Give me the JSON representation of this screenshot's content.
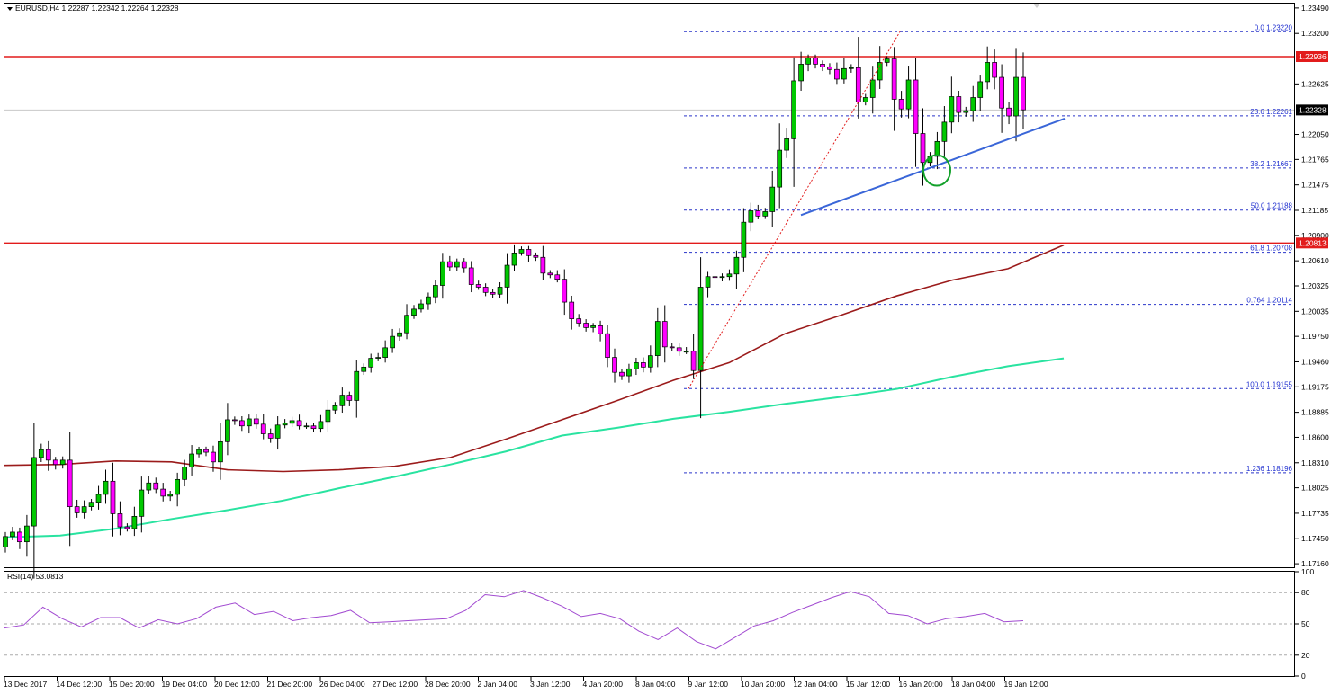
{
  "header": {
    "symbol_line": "EURUSD,H4  1.22287 1.22342 1.22264 1.22328",
    "menu_arrow_icon": "triangle-down-icon"
  },
  "rsi_header": "RSI(14) 53.0813",
  "colors": {
    "bull": "#00c800",
    "bear": "#ff00ff",
    "resistance": "#e21b1b",
    "fib": "#2a35c9",
    "trendline": "#3a66d8",
    "ma_fast": "#9b1b1b",
    "ma_slow": "#29e3a0",
    "rsi": "#a24bd1",
    "circle": "#12a12a",
    "swing": "#e21b1b"
  },
  "chart_data": {
    "type": "candlestick",
    "symbol": "EURUSD",
    "timeframe": "H4",
    "last": {
      "open": 1.22287,
      "high": 1.22342,
      "low": 1.22264,
      "close": 1.22328
    },
    "price_axis_labels": [
      "1.23490",
      "1.23200",
      "1.22625",
      "1.22050",
      "1.21765",
      "1.21475",
      "1.21185",
      "1.20900",
      "1.20610",
      "1.20325",
      "1.20035",
      "1.19750",
      "1.19460",
      "1.19175",
      "1.18885",
      "1.18600",
      "1.18310",
      "1.18025",
      "1.17735",
      "1.17450",
      "1.17160"
    ],
    "time_axis_labels": [
      "13 Dec 2017",
      "14 Dec 12:00",
      "15 Dec 20:00",
      "19 Dec 04:00",
      "20 Dec 12:00",
      "21 Dec 20:00",
      "26 Dec 04:00",
      "27 Dec 12:00",
      "28 Dec 20:00",
      "2 Jan 04:00",
      "3 Jan 12:00",
      "4 Jan 20:00",
      "8 Jan 04:00",
      "9 Jan 12:00",
      "10 Jan 20:00",
      "12 Jan 04:00",
      "15 Jan 12:00",
      "16 Jan 20:00",
      "18 Jan 04:00",
      "19 Jan 12:00"
    ],
    "ylim": [
      1.1712,
      1.2354
    ],
    "current_price_label": "1.22328",
    "resistance_levels": [
      {
        "price": 1.22936,
        "label": "1.22936"
      },
      {
        "price": 1.20813,
        "label": "1.20813"
      }
    ],
    "fibonacci": [
      {
        "price": 1.2322,
        "label": "0.0  1.23220"
      },
      {
        "price": 1.22261,
        "label": "23.6  1.22261"
      },
      {
        "price": 1.21667,
        "label": "38.2  1.21667"
      },
      {
        "price": 1.21188,
        "label": "50.0  1.21188"
      },
      {
        "price": 1.20708,
        "label": "61.8  1.20708"
      },
      {
        "price": 1.20114,
        "label": "0.764  1.20114"
      },
      {
        "price": 1.19155,
        "label": "100.0  1.19155"
      },
      {
        "price": 1.18196,
        "label": "1.236  1.18196"
      }
    ],
    "closes": [
      1.1747,
      1.1752,
      1.1741,
      1.1759,
      1.1837,
      1.1846,
      1.1834,
      1.1829,
      1.1834,
      1.1781,
      1.1774,
      1.1781,
      1.1786,
      1.1795,
      1.181,
      1.1773,
      1.1758,
      1.1756,
      1.177,
      1.18,
      1.1808,
      1.1801,
      1.1793,
      1.1795,
      1.1812,
      1.1826,
      1.1841,
      1.1846,
      1.1843,
      1.1832,
      1.1855,
      1.188,
      1.1879,
      1.1873,
      1.1881,
      1.1875,
      1.1864,
      1.1859,
      1.1874,
      1.1876,
      1.1879,
      1.1873,
      1.1873,
      1.187,
      1.1878,
      1.1891,
      1.1896,
      1.1908,
      1.1902,
      1.1935,
      1.194,
      1.195,
      1.1951,
      1.1962,
      1.1975,
      1.1979,
      1.1999,
      1.2006,
      1.2012,
      1.202,
      1.2033,
      1.206,
      1.2054,
      1.206,
      1.2053,
      1.2034,
      1.2031,
      1.2025,
      1.2023,
      1.2031,
      1.2056,
      1.207,
      1.2074,
      1.2067,
      1.2065,
      1.2047,
      1.2045,
      1.204,
      1.2014,
      1.1995,
      1.199,
      1.1985,
      1.1987,
      1.1978,
      1.1951,
      1.1934,
      1.193,
      1.1938,
      1.1945,
      1.194,
      1.1953,
      1.1992,
      1.1963,
      1.1962,
      1.1958,
      1.1958,
      1.1936,
      1.2031,
      1.2043,
      1.2042,
      1.2043,
      1.2046,
      1.2065,
      1.2105,
      1.2118,
      1.2112,
      1.2117,
      1.2145,
      1.2187,
      1.22,
      1.2266,
      1.2285,
      1.2292,
      1.2285,
      1.2282,
      1.2279,
      1.2268,
      1.228,
      1.2281,
      1.2242,
      1.2247,
      1.2267,
      1.2287,
      1.2291,
      1.2245,
      1.2234,
      1.2267,
      1.2206,
      1.2173,
      1.218,
      1.2197,
      1.2219,
      1.2248,
      1.223,
      1.2232,
      1.2247,
      1.2265,
      1.2287,
      1.227,
      1.2235,
      1.2226,
      1.227,
      1.2233
    ],
    "ma_fast_values": [
      1.1828,
      1.1829,
      1.1833,
      1.1832,
      1.1823,
      1.1821,
      1.1823,
      1.1827,
      1.1837,
      1.1858,
      1.188,
      1.1902,
      1.1925,
      1.1945,
      1.1978,
      1.1999,
      1.2021,
      1.2039,
      1.2052,
      1.2079
    ],
    "ma_slow_values": [
      1.1746,
      1.1748,
      1.1756,
      1.1767,
      1.1777,
      1.1788,
      1.1802,
      1.1815,
      1.1829,
      1.1844,
      1.1862,
      1.1871,
      1.1881,
      1.1889,
      1.1898,
      1.1906,
      1.1915,
      1.1929,
      1.1941,
      1.195
    ],
    "rsi": {
      "name": "RSI(14)",
      "last": 53.0813,
      "levels": [
        80,
        50,
        20
      ],
      "axis_labels": [
        "100",
        "80",
        "50",
        "20",
        "0"
      ],
      "values": [
        46,
        49,
        66,
        55,
        47,
        56,
        56,
        46,
        54,
        50,
        55,
        66,
        70,
        59,
        62,
        53,
        56,
        58,
        63,
        51,
        52,
        53,
        54,
        55,
        63,
        78,
        76,
        82,
        75,
        67,
        57,
        60,
        55,
        43,
        35,
        46,
        33,
        26,
        37,
        48,
        53,
        61,
        68,
        75,
        81,
        76,
        60,
        58,
        50,
        55,
        57,
        60,
        52,
        53
      ]
    }
  }
}
